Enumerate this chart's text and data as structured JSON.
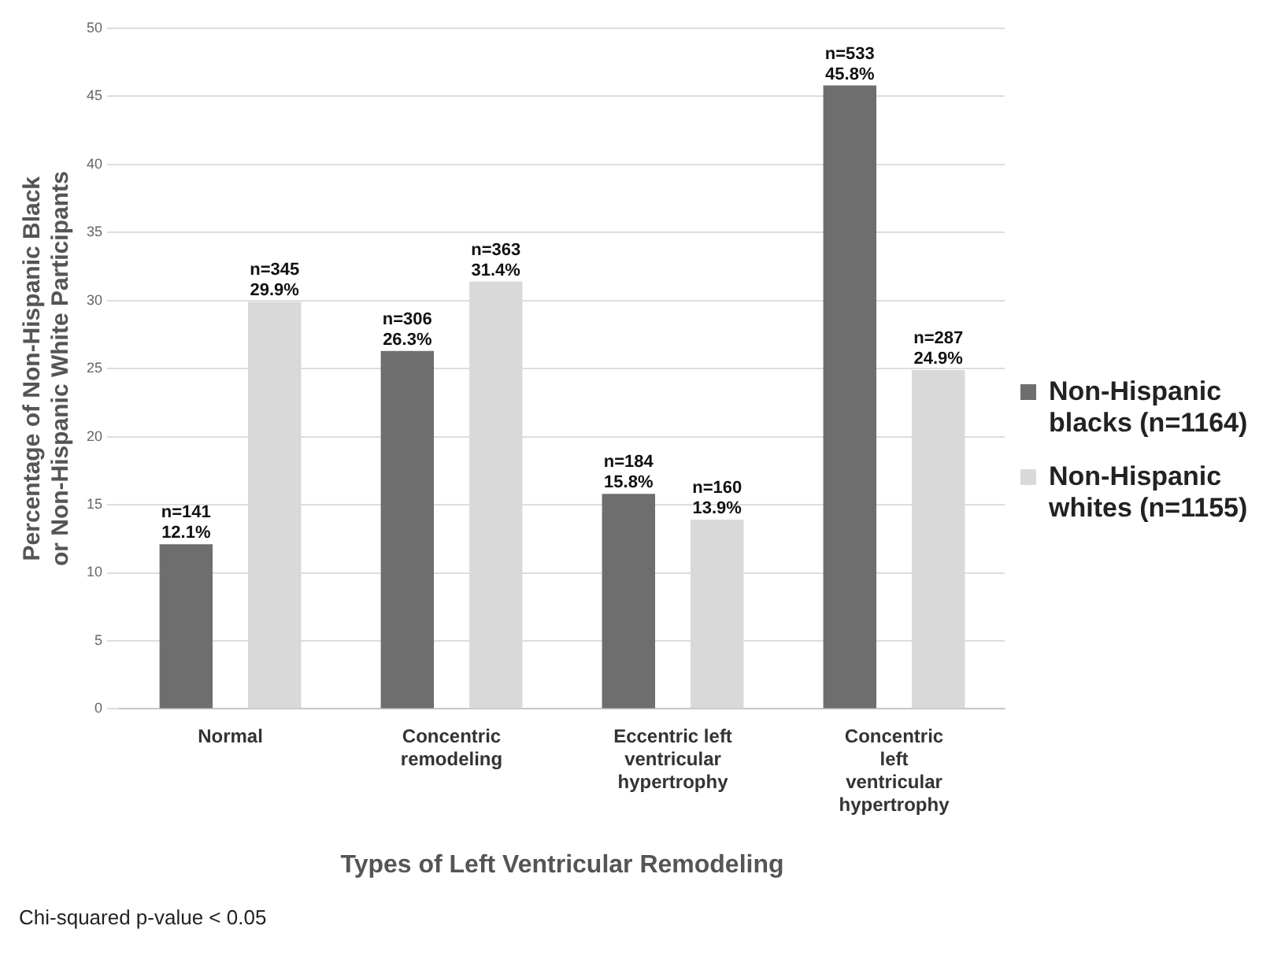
{
  "chart_data": {
    "type": "bar",
    "xlabel": "Types of Left Ventricular Remodeling",
    "ylabel": "Percentage of Non-Hispanic Black or Non-Hispanic White Participants",
    "categories": [
      "Normal",
      "Concentric remodeling",
      "Eccentric left ventricular hypertrophy",
      "Concentric left ventricular hypertrophy"
    ],
    "series": [
      {
        "name": "Non-Hispanic blacks (n=1164)",
        "color": "#6e6e6e",
        "values": [
          12.1,
          26.3,
          15.8,
          45.8
        ],
        "value_labels": [
          "n=141 12.1%",
          "n=306 26.3%",
          "n=184 15.8%",
          "n=533 45.8%"
        ]
      },
      {
        "name": "Non-Hispanic whites (n=1155)",
        "color": "#d9d9d9",
        "values": [
          29.9,
          31.4,
          13.9,
          24.9
        ],
        "value_labels": [
          "n=345 29.9%",
          "n=363 31.4%",
          "n=160 13.9%",
          "n=287 24.9%"
        ]
      }
    ],
    "ylim": [
      0,
      50
    ],
    "yticks": [
      0,
      5,
      10,
      15,
      20,
      25,
      30,
      35,
      40,
      45,
      50
    ],
    "grid": "y",
    "legend": "right",
    "annotations": [
      "Chi-squared p-value < 0.05"
    ]
  }
}
